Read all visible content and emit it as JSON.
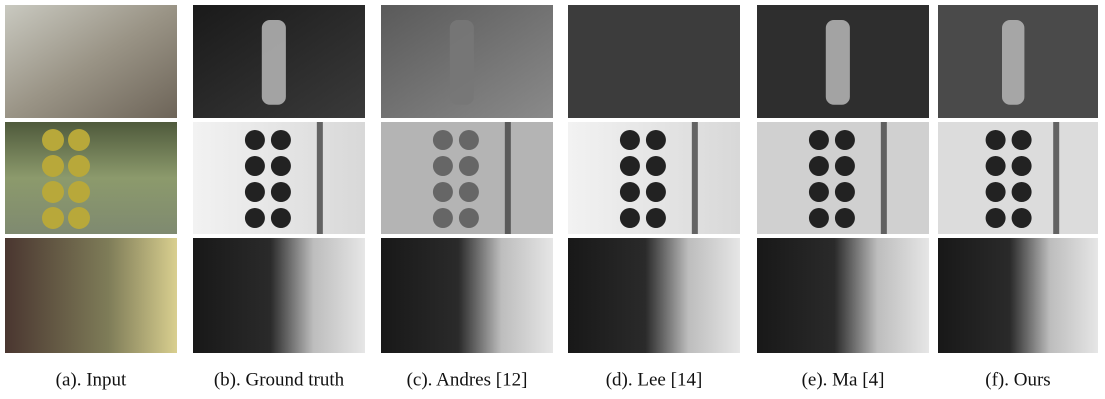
{
  "figure": {
    "captions": [
      "(a). Input",
      "(b). Ground truth",
      "(c). Andres  [12]",
      "(d). Lee [14]",
      "(e). Ma [4]",
      "(f). Ours"
    ]
  }
}
